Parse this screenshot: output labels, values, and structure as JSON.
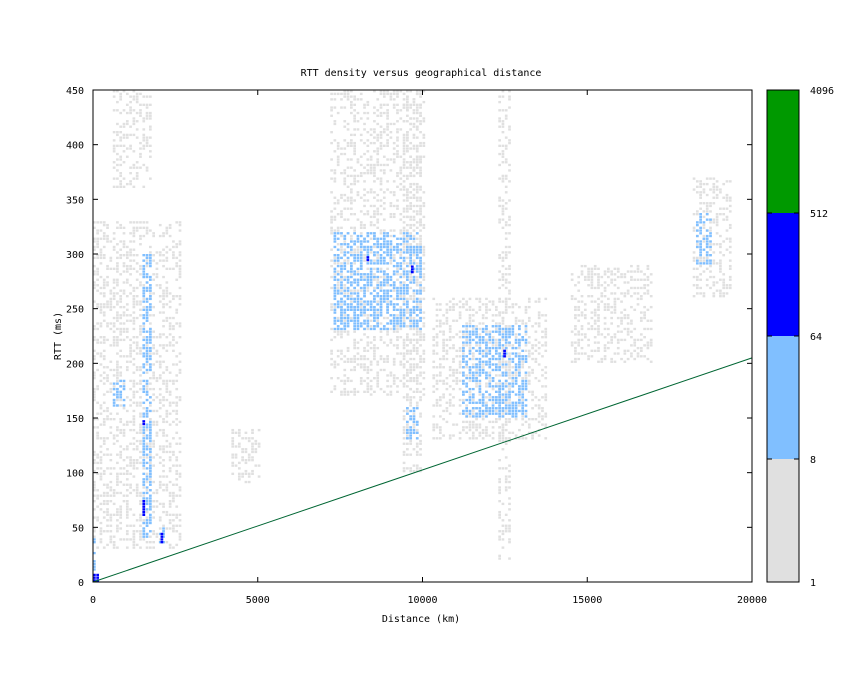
{
  "chart_data": {
    "type": "heatmap",
    "title": "RTT density versus geographical distance",
    "xlabel": "Distance (km)",
    "ylabel": "RTT (ms)",
    "xlim": [
      0,
      20000
    ],
    "ylim": [
      0,
      450
    ],
    "x_ticks": [
      "0",
      "5000",
      "10000",
      "15000",
      "20000"
    ],
    "y_ticks": [
      "0",
      "50",
      "100",
      "150",
      "200",
      "250",
      "300",
      "350",
      "400",
      "450"
    ],
    "x_tick_values": [
      0,
      5000,
      10000,
      15000,
      20000
    ],
    "y_tick_values": [
      0,
      50,
      100,
      150,
      200,
      250,
      300,
      350,
      400,
      450
    ],
    "grid": false,
    "colorbar": {
      "scale": "log",
      "ticks": [
        "1",
        "8",
        "64",
        "512",
        "4096"
      ],
      "bins": [
        {
          "from": 1,
          "to": 8,
          "color": "#e0e0e0"
        },
        {
          "from": 8,
          "to": 64,
          "color": "#80bfff"
        },
        {
          "from": 64,
          "to": 512,
          "color": "#0000ff"
        },
        {
          "from": 512,
          "to": 4096,
          "color": "#009900"
        }
      ]
    },
    "reference_line": {
      "color": "#006633",
      "points": [
        [
          0,
          0
        ],
        [
          20000,
          205
        ]
      ]
    },
    "density_regions": [
      {
        "level": "low",
        "x": [
          7200,
          10100
        ],
        "y": [
          170,
          450
        ]
      },
      {
        "level": "low",
        "x": [
          10300,
          13800
        ],
        "y": [
          130,
          260
        ]
      },
      {
        "level": "low",
        "x": [
          0,
          2700
        ],
        "y": [
          30,
          330
        ]
      },
      {
        "level": "low",
        "x": [
          9400,
          10000
        ],
        "y": [
          100,
          450
        ]
      },
      {
        "level": "low",
        "x": [
          12300,
          12700
        ],
        "y": [
          20,
          450
        ]
      },
      {
        "level": "low",
        "x": [
          18200,
          19400
        ],
        "y": [
          260,
          370
        ]
      },
      {
        "level": "low",
        "x": [
          14500,
          17000
        ],
        "y": [
          200,
          290
        ]
      },
      {
        "level": "low",
        "x": [
          4200,
          5100
        ],
        "y": [
          90,
          140
        ]
      },
      {
        "level": "low",
        "x": [
          600,
          1800
        ],
        "y": [
          360,
          450
        ]
      },
      {
        "level": "mid",
        "x": [
          7300,
          10000
        ],
        "y": [
          230,
          320
        ]
      },
      {
        "level": "mid",
        "x": [
          11200,
          13200
        ],
        "y": [
          150,
          235
        ]
      },
      {
        "level": "mid",
        "x": [
          600,
          1000
        ],
        "y": [
          160,
          185
        ]
      },
      {
        "level": "mid",
        "x": [
          1500,
          1750
        ],
        "y": [
          40,
          300
        ]
      },
      {
        "level": "mid",
        "x": [
          2000,
          2150
        ],
        "y": [
          35,
          50
        ]
      },
      {
        "level": "mid",
        "x": [
          18300,
          18800
        ],
        "y": [
          290,
          340
        ]
      },
      {
        "level": "mid",
        "x": [
          9500,
          9900
        ],
        "y": [
          130,
          160
        ]
      },
      {
        "level": "mid",
        "x": [
          0,
          100
        ],
        "y": [
          0,
          40
        ]
      },
      {
        "level": "high",
        "x": [
          0,
          200
        ],
        "y": [
          0,
          7
        ]
      },
      {
        "level": "high",
        "x": [
          1500,
          1600
        ],
        "y": [
          60,
          75
        ]
      },
      {
        "level": "high",
        "x": [
          2050,
          2150
        ],
        "y": [
          35,
          45
        ]
      },
      {
        "level": "high",
        "x": [
          12450,
          12550
        ],
        "y": [
          205,
          212
        ]
      },
      {
        "level": "high",
        "x": [
          9650,
          9750
        ],
        "y": [
          282,
          288
        ]
      },
      {
        "level": "high",
        "x": [
          8300,
          8400
        ],
        "y": [
          293,
          298
        ]
      },
      {
        "level": "high",
        "x": [
          1500,
          1600
        ],
        "y": [
          143,
          148
        ]
      }
    ]
  }
}
